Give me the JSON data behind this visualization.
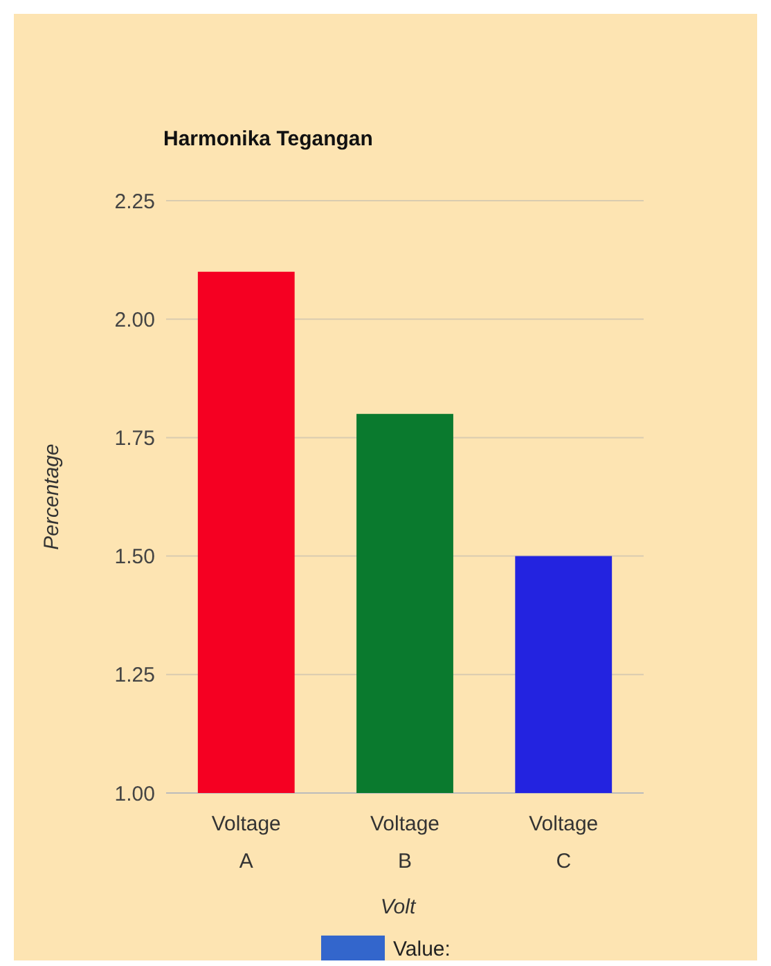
{
  "chart_data": {
    "type": "bar",
    "title": "Harmonika Tegangan",
    "xlabel": "Volt",
    "ylabel": "Percentage",
    "categories": [
      "Voltage A",
      "Voltage B",
      "Voltage C"
    ],
    "series": [
      {
        "name": "Value:",
        "color": "#3366cc",
        "colors": [
          "#f50022",
          "#0a7a2e",
          "#2323e0"
        ],
        "values": [
          2.1,
          1.8,
          1.5
        ]
      }
    ],
    "ylim": [
      1,
      2.25
    ],
    "yticks": [
      {
        "value": 1,
        "label": "1.00"
      },
      {
        "value": 1.25,
        "label": "1.25"
      },
      {
        "value": 1.5,
        "label": "1.50"
      },
      {
        "value": 1.75,
        "label": "1.75"
      },
      {
        "value": 2,
        "label": "2.00"
      },
      {
        "value": 2.25,
        "label": "2.25"
      }
    ],
    "grid": "y",
    "legend": "bottom"
  }
}
